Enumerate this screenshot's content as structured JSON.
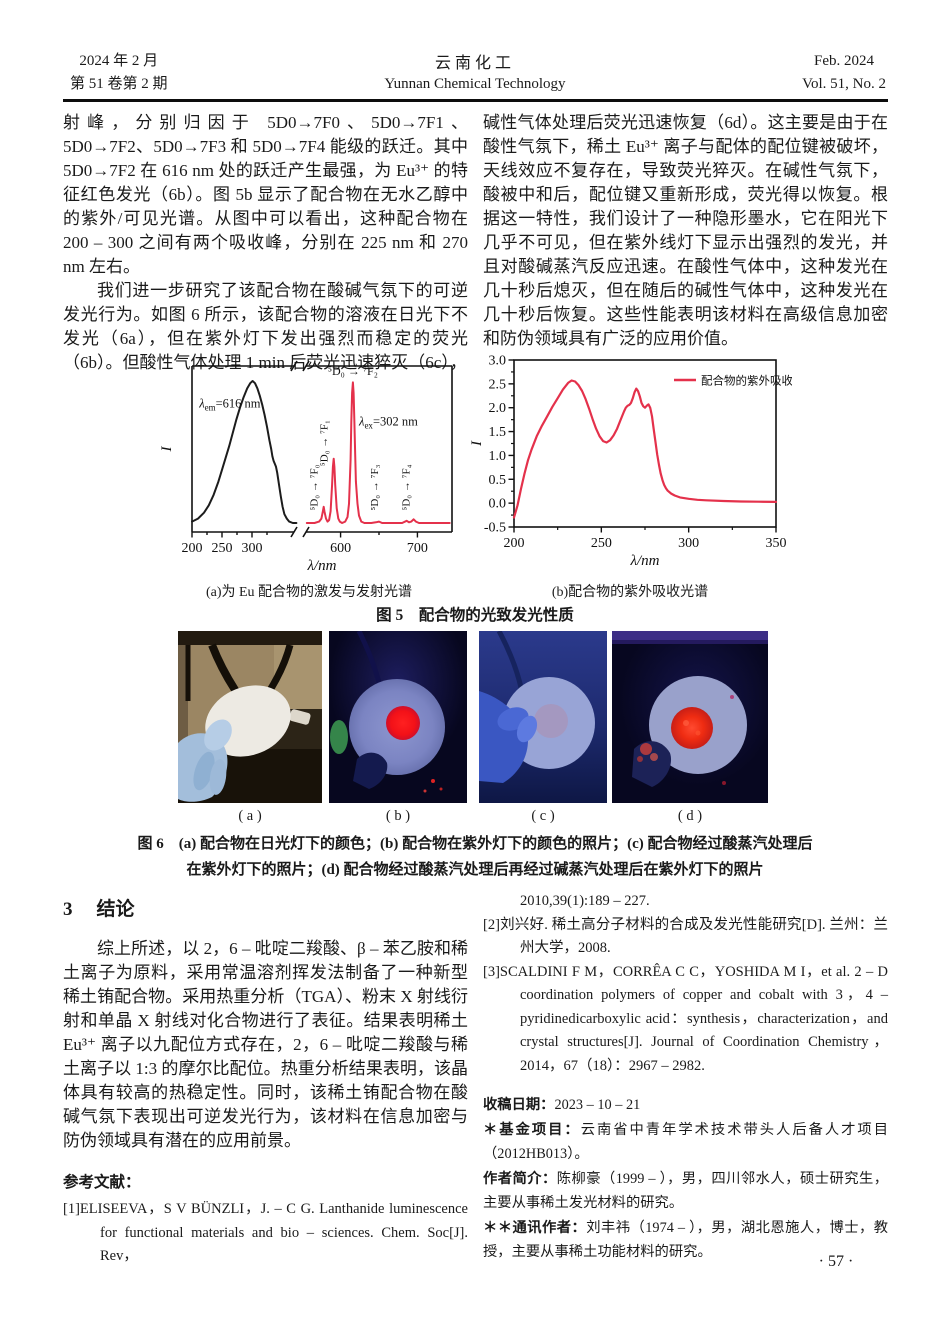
{
  "header": {
    "left_line1": "2024 年 2 月",
    "left_line2": "第 51 卷第 2 期",
    "center_cn": "云南化工",
    "center_en": "Yunnan Chemical Technology",
    "right_line1": "Feb. 2024",
    "right_line2": "Vol. 51, No. 2"
  },
  "article": {
    "left_col_p1": "射峰，分别归因于 5D0→7F0、5D0→7F1、5D0→7F2、5D0→7F3 和 5D0→7F4 能级的跃迁。其中 5D0→7F2 在 616 nm 处的跃迁产生最强，为 Eu³⁺ 的特征红色发光（6b）。图 5b 显示了配合物在无水乙醇中的紫外/可见光谱。从图中可以看出，这种配合物在 200 – 300 之间有两个吸收峰，分别在 225 nm 和 270 nm 左右。",
    "left_col_p2": "我们进一步研究了该配合物在酸碱气氛下的可逆发光行为。如图 6 所示，该配合物的溶液在日光下不发光（6a），但在紫外灯下发出强烈而稳定的荧光（6b）。但酸性气体处理 1 min 后荧光迅速猝灭（6c），",
    "right_col_p1": "碱性气体处理后荧光迅速恢复（6d）。这主要是由于在酸性气氛下，稀土 Eu³⁺ 离子与配体的配位键被破坏，天线效应不复存在，导致荧光猝灭。在碱性气氛下，酸被中和后，配位键又重新形成，荧光得以恢复。根据这一特性，我们设计了一种隐形墨水，它在阳光下几乎不可见，但在紫外线灯下显示出强烈的发光，并且对酸碱蒸汽反应迅速。在酸性气体中，这种发光在几十秒后熄灭，但在随后的碱性气体中，这种发光在几十秒后恢复。这些性能表明该材料在高级信息加密和防伪领域具有广泛的应用价值。"
  },
  "figure5": {
    "caption_a": "(a)为 Eu 配合物的激发与发射光谱",
    "caption_b": "(b)配合物的紫外吸收光谱",
    "caption_main": "图 5　配合物的光致发光性质"
  },
  "figure6": {
    "labels": [
      "( a )",
      "( b )",
      "( c )",
      "( d )"
    ],
    "caption_line1": "图 6　(a) 配合物在日光灯下的颜色；(b) 配合物在紫外灯下的颜色的照片；(c) 配合物经过酸蒸汽处理后",
    "caption_line2": "在紫外灯下的照片；(d) 配合物经过酸蒸汽处理后再经过碱蒸汽处理后在紫外灯下的照片"
  },
  "conclusion": {
    "heading_num": "3",
    "heading_text": "结论",
    "body": "综上所述，以 2，6 – 吡啶二羧酸、β – 苯乙胺和稀土离子为原料，采用常温溶剂挥发法制备了一种新型稀土铕配合物。采用热重分析（TGA）、粉末 X 射线衍射和单晶 X 射线对化合物进行了表征。结果表明稀土 Eu³⁺ 离子以九配位方式存在，2，6 – 吡啶二羧酸与稀土离子以 1:3 的摩尔比配位。热重分析结果表明，该晶体具有较高的热稳定性。同时，该稀土铕配合物在酸碱气氛下表现出可逆发光行为，该材料在信息加密与防伪领域具有潜在的应用前景。"
  },
  "references": {
    "heading": "参考文献：",
    "ref1_label": "[1]",
    "ref1_text": "ELISEEVA，S V BÜNZLI，J. – C G. Lanthanide luminescence for functional materials and bio – sciences. Chem. Soc[J]. Rev，",
    "ref1_cont": "2010,39(1):189 – 227.",
    "ref2_label": "[2]",
    "ref2_text": "刘兴好. 稀土高分子材料的合成及发光性能研究[D]. 兰州：兰州大学，2008.",
    "ref3_label": "[3]",
    "ref3_text": "SCALDINI F M，CORRÊA C C，YOSHIDA M I，et al. 2 – D coordination polymers of copper and cobalt with 3，4 – pyridinedicarboxylic acid：synthesis，characterization，and crystal structures[J]. Journal of Coordination Chemistry，2014，67（18）：2967 – 2982."
  },
  "notes": {
    "received_label": "收稿日期：",
    "received_value": "2023 – 10 – 21",
    "fund_label": "＊基金项目：",
    "fund_value": "云南省中青年学术技术带头人后备人才项目（2012HB013）。",
    "author_label": "作者简介：",
    "author_value": "陈柳豪（1999 – ），男，四川邻水人，硕士研究生，主要从事稀土发光材料的研究。",
    "corr_label": "＊＊通讯作者：",
    "corr_value": "刘丰祎（1974 – ），男，湖北恩施人，博士，教授，主要从事稀土功能材料的研究。"
  },
  "page_number": "· 57 ·",
  "chart_data": [
    {
      "id": "fig5a",
      "type": "line",
      "xlabel": "λ/nm",
      "ylabel": "I",
      "axis_break": true,
      "x_ticks_left": [
        200,
        250,
        300
      ],
      "x_minor_left": [
        225,
        275,
        325
      ],
      "x_ticks_right": [
        600,
        700
      ],
      "x_minor_right": [
        650
      ],
      "left_range_nm": [
        200,
        370
      ],
      "right_range_nm": [
        555,
        745
      ],
      "series": [
        {
          "name": "excitation",
          "color": "#1c1c1c",
          "label": {
            "pre": "λ",
            "sub": "em",
            "post": "=616 nm",
            "nm": 212,
            "rel": 0.8
          },
          "points": [
            [
              200,
              0.03
            ],
            [
              210,
              0.05
            ],
            [
              220,
              0.09
            ],
            [
              228,
              0.14
            ],
            [
              236,
              0.21
            ],
            [
              244,
              0.3
            ],
            [
              250,
              0.38
            ],
            [
              256,
              0.46
            ],
            [
              262,
              0.54
            ],
            [
              268,
              0.63
            ],
            [
              274,
              0.72
            ],
            [
              280,
              0.8
            ],
            [
              286,
              0.87
            ],
            [
              292,
              0.93
            ],
            [
              297,
              0.965
            ],
            [
              301,
              0.98
            ],
            [
              305,
              0.965
            ],
            [
              309,
              0.93
            ],
            [
              313,
              0.88
            ],
            [
              317,
              0.82
            ],
            [
              321,
              0.75
            ],
            [
              325,
              0.67
            ],
            [
              329,
              0.58
            ],
            [
              332,
              0.52
            ],
            [
              334,
              0.47
            ],
            [
              336,
              0.44
            ],
            [
              338,
              0.42
            ],
            [
              340,
              0.4
            ],
            [
              342,
              0.36
            ],
            [
              345,
              0.28
            ],
            [
              348,
              0.2
            ],
            [
              351,
              0.13
            ],
            [
              354,
              0.08
            ],
            [
              358,
              0.05
            ],
            [
              362,
              0.03
            ],
            [
              368,
              0.02
            ],
            [
              374,
              0.02
            ]
          ]
        },
        {
          "name": "emission",
          "color": "#e4314b",
          "label": {
            "pre": "λ",
            "sub": "ex",
            "post": "=302 nm",
            "nm": 624,
            "rel": 0.68
          },
          "points": [
            [
              556,
              0.02
            ],
            [
              566,
              0.02
            ],
            [
              572,
              0.03
            ],
            [
              575,
              0.05
            ],
            [
              577,
              0.1
            ],
            [
              578,
              0.13
            ],
            [
              579,
              0.1
            ],
            [
              581,
              0.05
            ],
            [
              583,
              0.03
            ],
            [
              585,
              0.04
            ],
            [
              587,
              0.1
            ],
            [
              589,
              0.28
            ],
            [
              590,
              0.4
            ],
            [
              591,
              0.455
            ],
            [
              592,
              0.4
            ],
            [
              593,
              0.28
            ],
            [
              595,
              0.12
            ],
            [
              597,
              0.05
            ],
            [
              599,
              0.03
            ],
            [
              602,
              0.02
            ],
            [
              606,
              0.03
            ],
            [
              609,
              0.06
            ],
            [
              611,
              0.15
            ],
            [
              613,
              0.45
            ],
            [
              614,
              0.7
            ],
            [
              615,
              0.9
            ],
            [
              616,
              0.97
            ],
            [
              617,
              0.9
            ],
            [
              618,
              0.7
            ],
            [
              619,
              0.48
            ],
            [
              620,
              0.3
            ],
            [
              622,
              0.15
            ],
            [
              624,
              0.07
            ],
            [
              627,
              0.03
            ],
            [
              631,
              0.02
            ],
            [
              640,
              0.02
            ],
            [
              646,
              0.025
            ],
            [
              650,
              0.03
            ],
            [
              654,
              0.02
            ],
            [
              665,
              0.02
            ],
            [
              680,
              0.02
            ],
            [
              686,
              0.035
            ],
            [
              689,
              0.025
            ],
            [
              692,
              0.03
            ],
            [
              695,
              0.045
            ],
            [
              698,
              0.03
            ],
            [
              702,
              0.02
            ],
            [
              715,
              0.02
            ],
            [
              730,
              0.02
            ],
            [
              742,
              0.02
            ]
          ]
        }
      ],
      "peak_labels": [
        {
          "text": "⁵D₀ → ⁷F₂",
          "orient": "h",
          "nm": 616,
          "rel": 1.02
        },
        {
          "text": "⁵D₀ → ⁷F₀",
          "orient": "v",
          "nm": 570,
          "rel": 0.26
        },
        {
          "text": "⁵D₀ → ⁷F₁",
          "orient": "v",
          "nm": 583,
          "rel": 0.56
        },
        {
          "text": "⁵D₀ → ⁷F₃",
          "orient": "v",
          "nm": 649,
          "rel": 0.26
        },
        {
          "text": "⁵D₀ → ⁷F₄",
          "orient": "v",
          "nm": 690,
          "rel": 0.26
        }
      ]
    },
    {
      "id": "fig5b",
      "type": "line",
      "xlabel": "λ/nm",
      "ylabel": "I",
      "legend": "配合物的紫外吸收",
      "color": "#e4314b",
      "xlim": [
        200,
        350
      ],
      "ylim": [
        -0.5,
        3.0
      ],
      "x_ticks": [
        200,
        250,
        300,
        350
      ],
      "x_minor": [
        225,
        275,
        325
      ],
      "y_ticks": [
        -0.5,
        0.0,
        0.5,
        1.0,
        1.5,
        2.0,
        2.5,
        3.0
      ],
      "y_minor_step": 0.25,
      "points": [
        [
          200,
          -0.3
        ],
        [
          202,
          -0.05
        ],
        [
          204,
          0.3
        ],
        [
          206,
          0.62
        ],
        [
          208,
          0.9
        ],
        [
          210,
          1.12
        ],
        [
          213,
          1.4
        ],
        [
          216,
          1.62
        ],
        [
          219,
          1.82
        ],
        [
          222,
          2.02
        ],
        [
          225,
          2.2
        ],
        [
          228,
          2.38
        ],
        [
          231,
          2.52
        ],
        [
          233,
          2.57
        ],
        [
          235,
          2.55
        ],
        [
          237,
          2.47
        ],
        [
          239,
          2.35
        ],
        [
          241,
          2.18
        ],
        [
          243,
          1.98
        ],
        [
          245,
          1.76
        ],
        [
          247,
          1.56
        ],
        [
          249,
          1.4
        ],
        [
          251,
          1.3
        ],
        [
          253,
          1.27
        ],
        [
          255,
          1.32
        ],
        [
          257,
          1.42
        ],
        [
          259,
          1.56
        ],
        [
          261,
          1.74
        ],
        [
          263,
          1.92
        ],
        [
          264,
          2.0
        ],
        [
          265,
          2.04
        ],
        [
          266,
          2.06
        ],
        [
          267,
          2.1
        ],
        [
          268,
          2.2
        ],
        [
          269,
          2.32
        ],
        [
          270,
          2.4
        ],
        [
          271,
          2.35
        ],
        [
          272,
          2.24
        ],
        [
          273,
          2.1
        ],
        [
          274,
          2.03
        ],
        [
          275,
          2.0
        ],
        [
          276,
          2.04
        ],
        [
          277,
          2.07
        ],
        [
          278,
          2.0
        ],
        [
          279,
          1.82
        ],
        [
          280,
          1.55
        ],
        [
          281,
          1.28
        ],
        [
          282,
          1.02
        ],
        [
          283,
          0.8
        ],
        [
          284,
          0.62
        ],
        [
          285,
          0.48
        ],
        [
          286,
          0.38
        ],
        [
          287,
          0.31
        ],
        [
          288,
          0.26
        ],
        [
          290,
          0.2
        ],
        [
          292,
          0.16
        ],
        [
          295,
          0.12
        ],
        [
          300,
          0.09
        ],
        [
          305,
          0.07
        ],
        [
          310,
          0.06
        ],
        [
          320,
          0.045
        ],
        [
          330,
          0.035
        ],
        [
          340,
          0.03
        ],
        [
          350,
          0.025
        ]
      ]
    }
  ]
}
